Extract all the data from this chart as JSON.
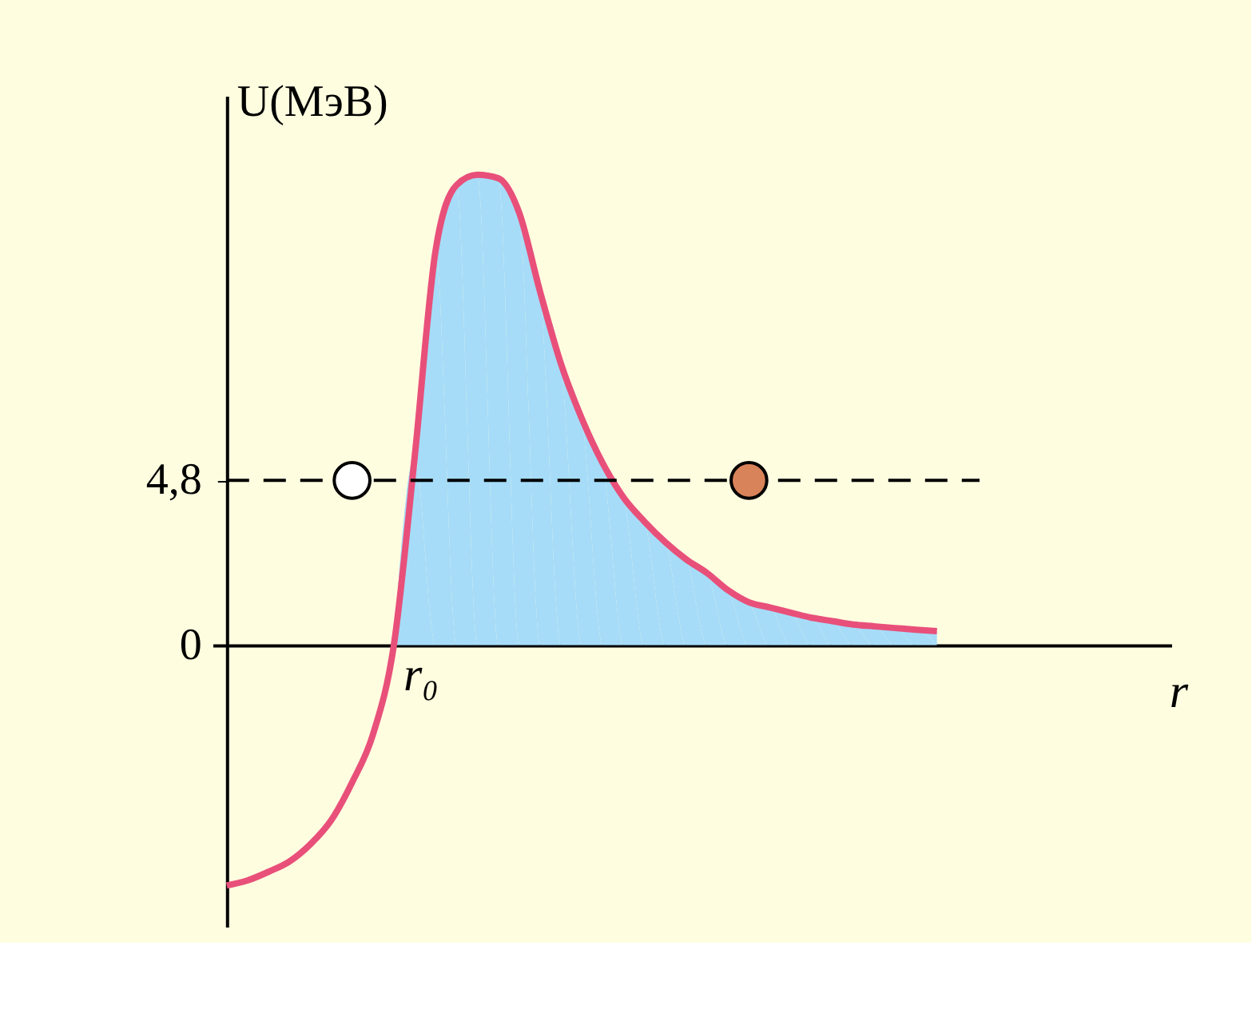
{
  "chart_data": {
    "type": "line",
    "xlabel": "r",
    "ylabel": "U(МэВ)",
    "categories": [
      null,
      null,
      null,
      null,
      null,
      null,
      null,
      null,
      null,
      null,
      null,
      null,
      null,
      null,
      null,
      null,
      null,
      null,
      null,
      null,
      null,
      null,
      null,
      null,
      null,
      null,
      null,
      null,
      null,
      null,
      null,
      null,
      null,
      null,
      null
    ],
    "ylim": [
      -8.2,
      16.0
    ],
    "yticks": [
      {
        "value": 0,
        "label": "0"
      },
      {
        "value": 4.8,
        "label": "4,8"
      }
    ],
    "tick_labels": "y",
    "grid": false,
    "annotations": [
      "r₀"
    ],
    "series": [
      {
        "type": "area",
        "color": "#a6dcf8",
        "values": [
          null,
          null,
          null,
          null,
          null,
          null,
          null,
          null,
          0,
          5.5,
          11.5,
          13.4,
          13.7,
          13.6,
          12.6,
          10.3,
          8.2,
          6.6,
          5.3,
          4.3,
          3.6,
          3.0,
          2.5,
          2.1,
          1.6,
          1.25,
          1.1,
          0.95,
          0.8,
          0.7,
          0.6,
          0.55,
          0.5,
          0.45,
          0.41
        ]
      },
      {
        "color": "#e8507a",
        "values": [
          -7.0,
          -6.85,
          -6.6,
          -6.3,
          -5.8,
          -5.1,
          -4.0,
          -2.6,
          0,
          5.5,
          11.5,
          13.4,
          13.7,
          13.6,
          12.6,
          10.3,
          8.2,
          6.6,
          5.3,
          4.3,
          3.6,
          3.0,
          2.5,
          2.1,
          1.6,
          1.25,
          1.1,
          0.95,
          0.8,
          0.7,
          0.6,
          0.55,
          0.5,
          0.45,
          0.41
        ]
      },
      {
        "type": "scatter",
        "marker": "circle",
        "color": "#ffffff",
        "values": [
          null,
          null,
          null,
          null,
          null,
          null,
          4.8,
          null,
          null,
          null,
          null,
          null,
          null,
          null,
          null,
          null,
          null,
          null,
          null,
          null,
          null,
          null,
          null,
          null,
          null,
          null,
          null,
          null,
          null,
          null,
          null,
          null,
          null,
          null,
          null
        ]
      },
      {
        "type": "scatter",
        "marker": "circle",
        "color": "#d9835a",
        "values": [
          null,
          null,
          null,
          null,
          null,
          null,
          null,
          null,
          null,
          null,
          null,
          null,
          null,
          null,
          null,
          null,
          null,
          null,
          null,
          null,
          null,
          null,
          null,
          null,
          null,
          4.8,
          null,
          null,
          null,
          null,
          null,
          null,
          null,
          null,
          null
        ]
      }
    ],
    "ref_lines": [
      {
        "axis": "y",
        "value": 4.8,
        "line_style": "dashed",
        "color": "#000000"
      }
    ]
  }
}
